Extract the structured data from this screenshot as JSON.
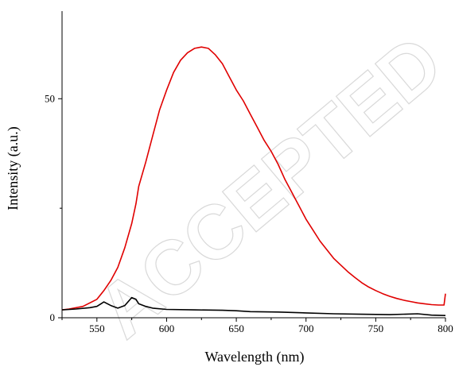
{
  "chart_data": {
    "type": "line",
    "title": "",
    "xlabel": "Wavelength (nm)",
    "ylabel": "Intensity (a.u.)",
    "xlim": [
      525,
      800
    ],
    "ylim": [
      0,
      70
    ],
    "x_ticks": [
      550,
      600,
      650,
      700,
      750,
      800
    ],
    "x_tick_labels": [
      "550",
      "600",
      "650",
      "700",
      "750",
      "800"
    ],
    "y_ticks": [
      0,
      50
    ],
    "y_tick_labels": [
      "0",
      "50"
    ],
    "grid": false,
    "legend": "none",
    "series": [
      {
        "color": "#e00000",
        "x": [
          525,
          530,
          540,
          550,
          555,
          560,
          565,
          570,
          575,
          578,
          580,
          585,
          590,
          595,
          600,
          605,
          610,
          615,
          620,
          625,
          630,
          635,
          640,
          645,
          650,
          655,
          660,
          665,
          670,
          675,
          680,
          685,
          690,
          695,
          700,
          705,
          710,
          715,
          720,
          725,
          730,
          735,
          740,
          745,
          750,
          755,
          760,
          765,
          770,
          775,
          780,
          785,
          790,
          795,
          799,
          800
        ],
        "y": [
          1.8,
          2.0,
          2.6,
          4.2,
          6.2,
          8.5,
          11.5,
          16.0,
          21.5,
          26.0,
          30.0,
          35.5,
          41.5,
          47.5,
          52.0,
          56.0,
          58.8,
          60.5,
          61.5,
          61.8,
          61.5,
          60.0,
          58.0,
          55.0,
          52.0,
          49.5,
          46.5,
          43.5,
          40.5,
          38.0,
          35.0,
          31.5,
          28.5,
          25.5,
          22.5,
          20.0,
          17.5,
          15.5,
          13.5,
          12.0,
          10.5,
          9.2,
          8.0,
          7.0,
          6.2,
          5.5,
          4.9,
          4.4,
          4.0,
          3.7,
          3.4,
          3.2,
          3.0,
          2.9,
          2.9,
          5.5
        ]
      },
      {
        "color": "#000000",
        "x": [
          525,
          535,
          545,
          550,
          555,
          560,
          565,
          570,
          575,
          578,
          580,
          585,
          590,
          600,
          620,
          640,
          650,
          660,
          680,
          700,
          720,
          740,
          760,
          780,
          790,
          800
        ],
        "y": [
          1.8,
          2.0,
          2.3,
          2.6,
          3.6,
          2.8,
          2.2,
          2.8,
          4.6,
          4.2,
          3.2,
          2.6,
          2.2,
          1.9,
          1.8,
          1.7,
          1.6,
          1.4,
          1.3,
          1.1,
          0.9,
          0.8,
          0.7,
          0.9,
          0.6,
          0.5
        ]
      }
    ]
  },
  "watermark": "ACCEPTED"
}
